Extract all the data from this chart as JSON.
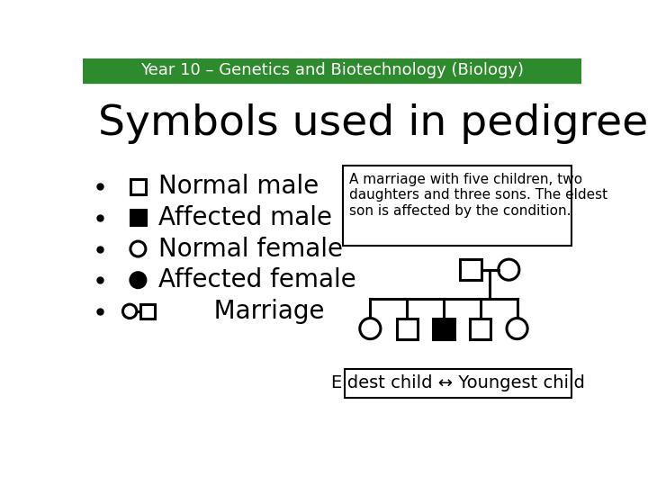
{
  "header_text": "Year 10 – Genetics and Biotechnology (Biology)",
  "header_bg": "#2d8a2d",
  "header_text_color": "#ffffff",
  "title": "Symbols used in pedigree charts",
  "bg_color": "#ffffff",
  "bullets": [
    "Normal male",
    "Affected male",
    "Normal female",
    "Affected female",
    "   Marriage"
  ],
  "description_box": "A marriage with five children, two\ndaughters and three sons. The eldest\nson is affected by the condition.",
  "bottom_caption": "Eldest child ↔ Youngest child",
  "header_fontsize": 13,
  "title_fontsize": 34,
  "bullet_fontsize": 20,
  "desc_fontsize": 11,
  "caption_fontsize": 14
}
